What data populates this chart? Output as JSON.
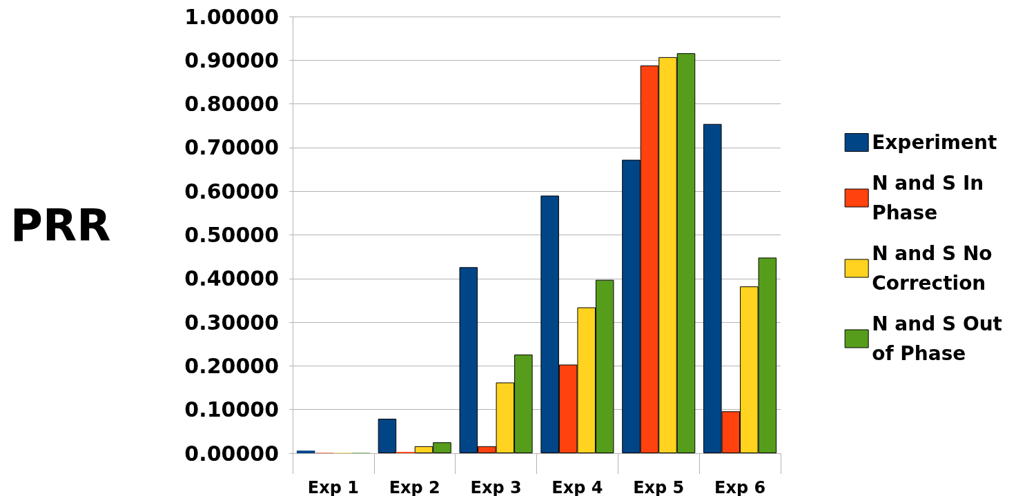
{
  "chart_data": {
    "type": "bar",
    "ylabel": "PRR",
    "categories": [
      "Exp 1",
      "Exp 2",
      "Exp 3",
      "Exp 4",
      "Exp 5",
      "Exp 6"
    ],
    "series": [
      {
        "name": "Experiment",
        "color": "#004586",
        "values": [
          0.006,
          0.079,
          0.426,
          0.59,
          0.672,
          0.754
        ]
      },
      {
        "name": "N and S In Phase",
        "color": "#ff420e",
        "values": [
          0.001,
          0.003,
          0.016,
          0.203,
          0.888,
          0.096
        ]
      },
      {
        "name": "N and S No Correction",
        "color": "#ffd320",
        "values": [
          0.001,
          0.016,
          0.162,
          0.334,
          0.907,
          0.382
        ]
      },
      {
        "name": "N and S Out of Phase",
        "color": "#579d1c",
        "values": [
          0.001,
          0.025,
          0.226,
          0.397,
          0.916,
          0.448
        ]
      }
    ],
    "ylim": [
      0,
      1
    ],
    "yticks": [
      {
        "value": 0,
        "label": "0.00000"
      },
      {
        "value": 0.1,
        "label": "0.10000"
      },
      {
        "value": 0.2,
        "label": "0.20000"
      },
      {
        "value": 0.3,
        "label": "0.30000"
      },
      {
        "value": 0.4,
        "label": "0.40000"
      },
      {
        "value": 0.5,
        "label": "0.50000"
      },
      {
        "value": 0.6,
        "label": "0.60000"
      },
      {
        "value": 0.7,
        "label": "0.70000"
      },
      {
        "value": 0.8,
        "label": "0.80000"
      },
      {
        "value": 0.9,
        "label": "0.90000"
      },
      {
        "value": 1,
        "label": "1.00000"
      }
    ],
    "grid": "y",
    "legend": "right"
  }
}
